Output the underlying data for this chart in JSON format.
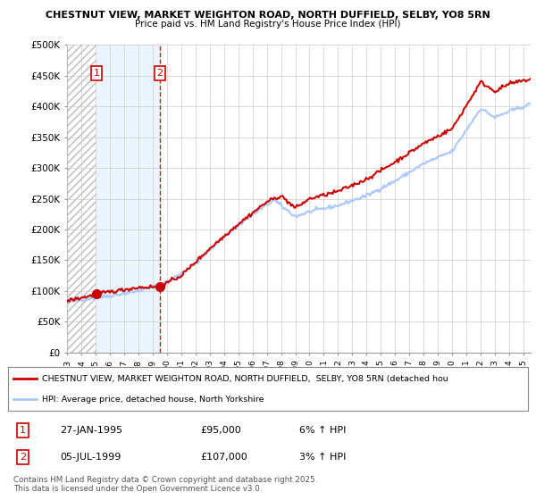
{
  "title_line1": "CHESTNUT VIEW, MARKET WEIGHTON ROAD, NORTH DUFFIELD, SELBY, YO8 5RN",
  "title_line2": "Price paid vs. HM Land Registry's House Price Index (HPI)",
  "ylim": [
    0,
    500000
  ],
  "yticks": [
    0,
    50000,
    100000,
    150000,
    200000,
    250000,
    300000,
    350000,
    400000,
    450000,
    500000
  ],
  "ytick_labels": [
    "£0",
    "£50K",
    "£100K",
    "£150K",
    "£200K",
    "£250K",
    "£300K",
    "£350K",
    "£400K",
    "£450K",
    "£500K"
  ],
  "background_color": "#ffffff",
  "plot_bg_color": "#ffffff",
  "grid_color": "#cccccc",
  "sale1_x": 1995.07,
  "sale1_y": 95000,
  "sale2_x": 1999.51,
  "sale2_y": 107000,
  "sale_color": "#cc0000",
  "marker_color": "#cc0000",
  "hpi_line_color": "#aac8ff",
  "price_line_color": "#cc0000",
  "hatch_color": "#d0d0d0",
  "shade_color": "#ddeeff",
  "legend_line1": "CHESTNUT VIEW, MARKET WEIGHTON ROAD, NORTH DUFFIELD,  SELBY, YO8 5RN (detached hou",
  "legend_line2": "HPI: Average price, detached house, North Yorkshire",
  "footer_line1": "Contains HM Land Registry data © Crown copyright and database right 2025.",
  "footer_line2": "This data is licensed under the Open Government Licence v3.0.",
  "table_row1": [
    "1",
    "27-JAN-1995",
    "£95,000",
    "6% ↑ HPI"
  ],
  "table_row2": [
    "2",
    "05-JUL-1999",
    "£107,000",
    "3% ↑ HPI"
  ],
  "xmin": 1993.0,
  "xmax": 2025.5
}
